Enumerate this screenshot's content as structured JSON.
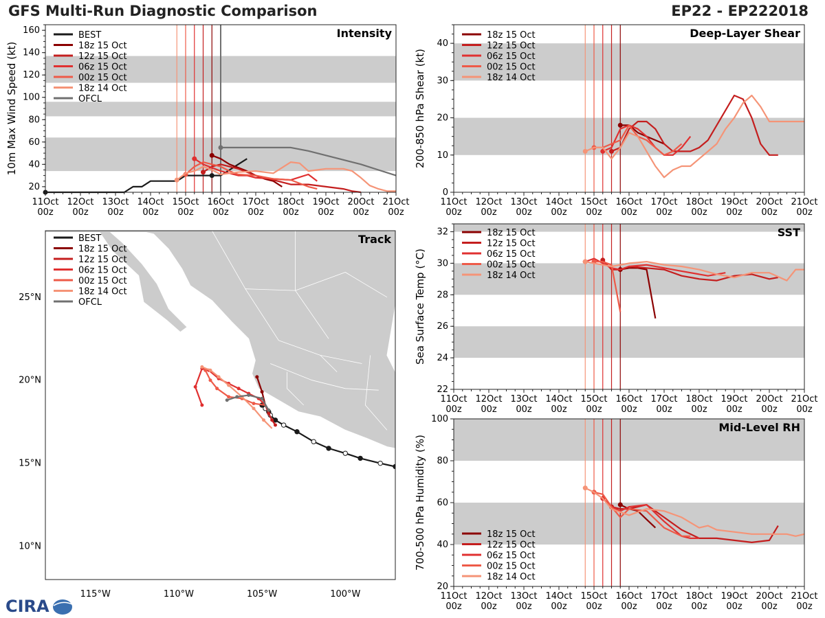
{
  "header": {
    "title": "GFS Multi-Run Diagnostic Comparison",
    "storm_id": "EP22 - EP222018"
  },
  "logo_text": "CIRA",
  "colors": {
    "BEST": "#1a1a1a",
    "OFCL": "#707070",
    "18z 15 Oct": "#8b0000",
    "12z 15 Oct": "#c41e1e",
    "06z 15 Oct": "#e03030",
    "00z 15 Oct": "#ee5a48",
    "18z 14 Oct": "#f59477",
    "band": "#cccccc"
  },
  "time_axis": {
    "ticks": [
      0,
      1,
      2,
      3,
      4,
      5,
      6,
      7,
      8,
      9,
      10
    ],
    "day_labels": [
      "11Oct",
      "12Oct",
      "13Oct",
      "14Oct",
      "15Oct",
      "16Oct",
      "17Oct",
      "18Oct",
      "19Oct",
      "20Oct",
      "21Oct"
    ],
    "hour_label": "00z",
    "init_times": [
      3.75,
      4.0,
      4.25,
      4.5,
      4.75
    ]
  },
  "chart_data": [
    {
      "id": "intensity",
      "type": "line",
      "title": "Intensity",
      "ylabel": "10m Max Wind Speed (kt)",
      "xlim": [
        0,
        10
      ],
      "ylim": [
        15,
        165
      ],
      "yticks": [
        20,
        40,
        60,
        80,
        100,
        120,
        140,
        160
      ],
      "bands": [
        [
          34,
          64
        ],
        [
          83,
          96
        ],
        [
          113,
          137
        ]
      ],
      "legend": [
        "BEST",
        "18z 15 Oct",
        "12z 15 Oct",
        "06z 15 Oct",
        "00z 15 Oct",
        "18z 14 Oct",
        "OFCL"
      ],
      "series": [
        {
          "name": "BEST",
          "x": [
            0,
            0.25,
            0.5,
            0.75,
            1,
            1.25,
            1.5,
            1.75,
            2,
            2.25,
            2.5,
            2.75,
            3,
            3.25,
            3.5,
            3.75,
            4,
            4.25,
            4.5,
            4.75
          ],
          "y": [
            15,
            15,
            15,
            15,
            15,
            15,
            15,
            15,
            15,
            15,
            20,
            20,
            25,
            25,
            25,
            25,
            30,
            30,
            30,
            30
          ]
        },
        {
          "name": "BEST",
          "x": [
            4.75,
            5.0,
            5.25,
            5.5,
            5.75
          ],
          "y": [
            30,
            30,
            35,
            40,
            45
          ]
        },
        {
          "name": "18z 15 Oct",
          "x": [
            4.75,
            5.0,
            5.25,
            5.5,
            5.75,
            6.0,
            6.25,
            6.5,
            6.75
          ],
          "y": [
            48,
            45,
            40,
            37,
            34,
            30,
            27,
            25,
            20
          ]
        },
        {
          "name": "12z 15 Oct",
          "x": [
            4.5,
            4.75,
            5.0,
            5.25,
            5.5,
            5.75,
            6.0,
            6.5,
            7.0,
            7.25,
            7.5,
            8.0,
            8.5,
            8.75,
            9.0
          ],
          "y": [
            33,
            38,
            40,
            38,
            36,
            33,
            30,
            26,
            22,
            22,
            22,
            20,
            18,
            16,
            15
          ]
        },
        {
          "name": "06z 15 Oct",
          "x": [
            4.25,
            4.5,
            4.75,
            5.0,
            5.25,
            5.5,
            5.75,
            6.0,
            6.5,
            7.0,
            7.5,
            7.75
          ],
          "y": [
            45,
            40,
            37,
            34,
            32,
            30,
            30,
            28,
            27,
            26,
            31,
            25
          ]
        },
        {
          "name": "00z 15 Oct",
          "x": [
            4.0,
            4.25,
            4.5,
            4.75,
            5.0,
            5.25,
            5.5,
            6.0,
            6.5,
            7.0,
            7.5,
            7.75
          ],
          "y": [
            31,
            38,
            42,
            40,
            38,
            34,
            31,
            30,
            27,
            26,
            20,
            18
          ]
        },
        {
          "name": "18z 14 Oct",
          "x": [
            3.75,
            4.0,
            4.25,
            4.5,
            4.75,
            5.0,
            5.5,
            6.0,
            6.5,
            7.0,
            7.25,
            7.5,
            7.75,
            8.0,
            8.5,
            8.75,
            9.0,
            9.25,
            9.5,
            9.75,
            10.0
          ],
          "y": [
            26,
            32,
            34,
            38,
            35,
            31,
            33,
            34,
            32,
            42,
            41,
            34,
            35,
            36,
            36,
            34,
            28,
            21,
            18,
            16,
            16
          ]
        },
        {
          "name": "OFCL",
          "x": [
            5.0,
            5.5,
            6.0,
            6.5,
            7.0,
            7.5,
            8.0,
            8.5,
            9.0,
            9.5,
            10.0
          ],
          "y": [
            55,
            55,
            55,
            55,
            55,
            52,
            48,
            44,
            40,
            35,
            30
          ]
        }
      ]
    },
    {
      "id": "shear",
      "type": "line",
      "title": "Deep-Layer Shear",
      "ylabel": "200-850 hPa Shear (kt)",
      "xlim": [
        0,
        10
      ],
      "ylim": [
        0,
        45
      ],
      "yticks": [
        0,
        10,
        20,
        30,
        40
      ],
      "bands": [
        [
          10,
          20
        ],
        [
          30,
          40
        ]
      ],
      "legend": [
        "18z 15 Oct",
        "12z 15 Oct",
        "06z 15 Oct",
        "00z 15 Oct",
        "18z 14 Oct"
      ],
      "series": [
        {
          "name": "18z 15 Oct",
          "x": [
            4.75,
            5.0,
            5.25,
            5.5,
            5.75,
            6.0
          ],
          "y": [
            18,
            18,
            16,
            15,
            14,
            13
          ]
        },
        {
          "name": "12z 15 Oct",
          "x": [
            4.5,
            4.75,
            5.0,
            5.25,
            5.5,
            5.75,
            6.0,
            6.25,
            6.5,
            6.75,
            7.0,
            7.25,
            7.5,
            7.75,
            8.0,
            8.25,
            8.5,
            8.75,
            9.0,
            9.25
          ],
          "y": [
            11,
            12,
            17,
            19,
            19,
            17,
            13,
            11,
            11,
            11,
            12,
            14,
            18,
            22,
            26,
            25,
            20,
            13,
            10,
            10
          ]
        },
        {
          "name": "06z 15 Oct",
          "x": [
            4.25,
            4.5,
            4.75,
            5.0,
            5.25,
            5.5,
            5.75,
            6.0,
            6.25,
            6.5,
            6.75
          ],
          "y": [
            11,
            12,
            17,
            18,
            17,
            15,
            12,
            10,
            10,
            12,
            15
          ]
        },
        {
          "name": "00z 15 Oct",
          "x": [
            4.0,
            4.25,
            4.5,
            4.75,
            5.0,
            5.25,
            5.5,
            5.75,
            6.0,
            6.25,
            6.5
          ],
          "y": [
            12,
            12,
            13,
            14,
            18,
            15,
            14,
            12,
            10,
            11,
            13
          ]
        },
        {
          "name": "18z 14 Oct",
          "x": [
            3.75,
            4.0,
            4.25,
            4.5,
            4.75,
            5.0,
            5.25,
            5.5,
            5.75,
            6.0,
            6.25,
            6.5,
            6.75,
            7.0,
            7.25,
            7.5,
            7.75,
            8.0,
            8.25,
            8.5,
            8.75,
            9.0,
            9.25,
            9.5,
            9.75,
            10.0
          ],
          "y": [
            11,
            12,
            12,
            9,
            12,
            16,
            15,
            11,
            7,
            4,
            6,
            7,
            7,
            9,
            11,
            13,
            17,
            20,
            24,
            26,
            23,
            19,
            19,
            19,
            19,
            19
          ]
        }
      ]
    },
    {
      "id": "sst",
      "type": "line",
      "title": "SST",
      "ylabel": "Sea Surface Temp (°C)",
      "xlim": [
        0,
        10
      ],
      "ylim": [
        22,
        32.5
      ],
      "yticks": [
        22,
        24,
        26,
        28,
        30,
        32
      ],
      "bands": [
        [
          24,
          26
        ],
        [
          28,
          30
        ],
        [
          32,
          32.5
        ]
      ],
      "legend": [
        "18z 15 Oct",
        "12z 15 Oct",
        "06z 15 Oct",
        "00z 15 Oct",
        "18z 14 Oct"
      ],
      "series": [
        {
          "name": "18z 15 Oct",
          "x": [
            4.75,
            5.0,
            5.25,
            5.5,
            5.75
          ],
          "y": [
            29.6,
            29.7,
            29.7,
            29.6,
            26.5
          ]
        },
        {
          "name": "12z 15 Oct",
          "x": [
            4.25,
            4.5,
            4.75,
            5.0,
            5.5,
            6.0,
            6.5,
            7.0,
            7.5,
            8.0,
            8.5,
            9.0,
            9.25
          ],
          "y": [
            30.2,
            29.6,
            29.6,
            29.8,
            29.7,
            29.6,
            29.2,
            29.0,
            28.9,
            29.2,
            29.3,
            29.0,
            29.1
          ]
        },
        {
          "name": "06z 15 Oct",
          "x": [
            3.75,
            4.0,
            4.25,
            4.5,
            4.75,
            5.0,
            5.5,
            6.0,
            6.5,
            7.0,
            7.25,
            7.5,
            7.75
          ],
          "y": [
            30.1,
            30.3,
            30.0,
            29.7,
            29.6,
            29.8,
            29.9,
            29.7,
            29.5,
            29.3,
            29.2,
            29.3,
            29.4
          ]
        },
        {
          "name": "00z 15 Oct",
          "x": [
            4.0,
            4.25,
            4.5,
            4.75
          ],
          "y": [
            30.1,
            30.1,
            29.9,
            26.9
          ]
        },
        {
          "name": "18z 14 Oct",
          "x": [
            3.75,
            4.0,
            4.5,
            5.0,
            5.5,
            6.0,
            6.5,
            7.0,
            7.5,
            8.0,
            8.5,
            9.0,
            9.5,
            9.75,
            10.0
          ],
          "y": [
            30.1,
            30.0,
            29.8,
            30.0,
            30.1,
            29.9,
            29.8,
            29.6,
            29.3,
            29.1,
            29.4,
            29.4,
            28.9,
            29.6,
            29.6
          ]
        }
      ]
    },
    {
      "id": "rh",
      "type": "line",
      "title": "Mid-Level RH",
      "ylabel": "700-500 hPa Humidity (%)",
      "xlim": [
        0,
        10
      ],
      "ylim": [
        20,
        100
      ],
      "yticks": [
        20,
        40,
        60,
        80,
        100
      ],
      "bands": [
        [
          40,
          60
        ],
        [
          80,
          100
        ]
      ],
      "legend": [
        "18z 15 Oct",
        "12z 15 Oct",
        "06z 15 Oct",
        "00z 15 Oct",
        "18z 14 Oct"
      ],
      "series": [
        {
          "name": "18z 15 Oct",
          "x": [
            4.75,
            5.0,
            5.25,
            5.5,
            5.75
          ],
          "y": [
            59,
            57,
            56,
            52,
            48
          ]
        },
        {
          "name": "12z 15 Oct",
          "x": [
            4.5,
            4.75,
            5.0,
            5.5,
            6.0,
            6.5,
            7.0,
            7.5,
            8.0,
            8.5,
            9.0,
            9.25
          ],
          "y": [
            58,
            57,
            57,
            59,
            53,
            47,
            43,
            43,
            42,
            41,
            42,
            49
          ]
        },
        {
          "name": "06z 15 Oct",
          "x": [
            4.25,
            4.5,
            4.75,
            5.0,
            5.5,
            6.0,
            6.5,
            6.75,
            7.0
          ],
          "y": [
            62,
            58,
            56,
            58,
            59,
            51,
            44,
            43,
            43
          ]
        },
        {
          "name": "00z 15 Oct",
          "x": [
            4.0,
            4.25,
            4.5,
            4.75,
            5.0,
            5.5,
            6.0,
            6.5,
            6.75
          ],
          "y": [
            65,
            64,
            58,
            53,
            57,
            56,
            48,
            44,
            44
          ]
        },
        {
          "name": "18z 14 Oct",
          "x": [
            3.75,
            4.0,
            4.25,
            4.5,
            5.0,
            5.5,
            6.0,
            6.5,
            7.0,
            7.25,
            7.5,
            8.0,
            8.5,
            9.0,
            9.5,
            9.75,
            10.0
          ],
          "y": [
            67,
            65,
            62,
            57,
            54,
            57,
            56,
            53,
            48,
            49,
            47,
            46,
            45,
            45,
            45,
            44,
            45
          ]
        }
      ]
    },
    {
      "id": "track",
      "type": "scatter",
      "title": "Track",
      "xlim": [
        -118,
        -97
      ],
      "ylim": [
        8,
        29
      ],
      "xticks": [
        -115,
        -110,
        -105,
        -100
      ],
      "xtick_labels": [
        "115°W",
        "110°W",
        "105°W",
        "100°W"
      ],
      "yticks": [
        10,
        15,
        20,
        25
      ],
      "ytick_labels": [
        "10°N",
        "15°N",
        "20°N",
        "25°N"
      ],
      "legend": [
        "BEST",
        "18z 15 Oct",
        "12z 15 Oct",
        "06z 15 Oct",
        "00z 15 Oct",
        "18z 14 Oct",
        "OFCL"
      ],
      "series": [
        {
          "name": "BEST",
          "lon": [
            -97.0,
            -97.9,
            -99.1,
            -100.0,
            -101.0,
            -101.9,
            -102.9,
            -103.7,
            -104.2,
            -104.5,
            -104.6,
            -104.8,
            -105.0
          ],
          "lat": [
            14.8,
            15.0,
            15.3,
            15.6,
            15.9,
            16.3,
            16.9,
            17.3,
            17.6,
            17.9,
            18.1,
            18.3,
            18.5
          ]
        },
        {
          "name": "18z 15 Oct",
          "lon": [
            -104.8,
            -105.0,
            -105.3
          ],
          "lat": [
            18.5,
            19.3,
            20.2
          ]
        },
        {
          "name": "12z 15 Oct",
          "lon": [
            -104.8,
            -104.6,
            -104.4,
            -104.2
          ],
          "lat": [
            18.5,
            18.0,
            17.6,
            17.3
          ]
        },
        {
          "name": "06z 15 Oct",
          "lon": [
            -104.8,
            -105.2,
            -105.8,
            -106.4,
            -107.0,
            -107.6,
            -108.2,
            -108.6,
            -109.0,
            -108.6
          ],
          "lat": [
            18.5,
            18.9,
            19.2,
            19.5,
            19.8,
            20.1,
            20.6,
            20.7,
            19.6,
            18.5
          ]
        },
        {
          "name": "00z 15 Oct",
          "lon": [
            -104.8,
            -105.5,
            -106.2,
            -107.0,
            -107.7,
            -108.1,
            -108.4
          ],
          "lat": [
            18.5,
            18.6,
            18.9,
            19.0,
            19.5,
            20.0,
            20.6
          ]
        },
        {
          "name": "18z 14 Oct",
          "lon": [
            -104.4,
            -104.9,
            -105.5,
            -106.2,
            -107.0,
            -107.6,
            -108.1,
            -108.6
          ],
          "lat": [
            17.1,
            17.6,
            18.3,
            19.0,
            19.7,
            20.2,
            20.6,
            20.8
          ]
        },
        {
          "name": "OFCL",
          "lon": [
            -104.8,
            -104.6,
            -105.0,
            -105.8,
            -106.5,
            -107.1
          ],
          "lat": [
            18.5,
            18.2,
            18.9,
            19.1,
            19.0,
            18.8
          ]
        }
      ]
    }
  ]
}
